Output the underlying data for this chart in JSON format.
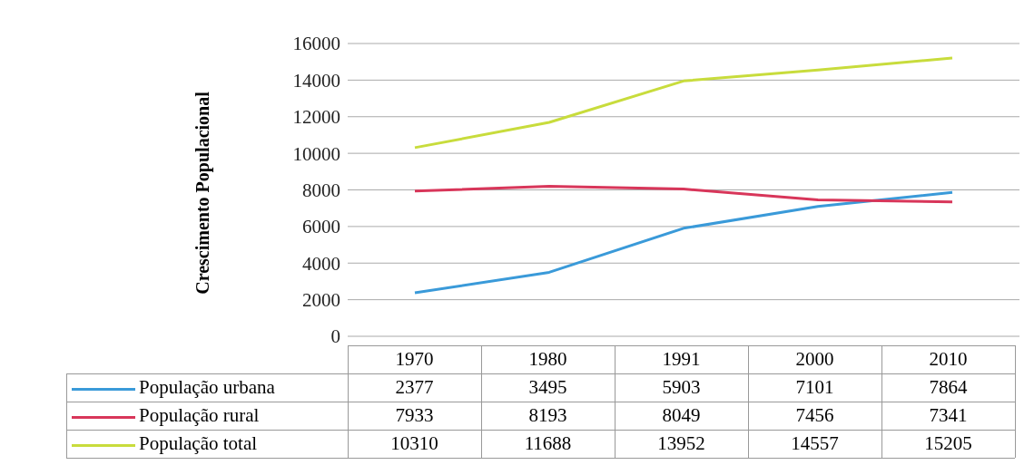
{
  "chart_data": {
    "type": "line",
    "ylabel": "Crescimento Populacional",
    "categories": [
      "1970",
      "1980",
      "1991",
      "2000",
      "2010"
    ],
    "series": [
      {
        "name": "População urbana",
        "color": "#3a9ad9",
        "values": [
          2377,
          3495,
          5903,
          7101,
          7864
        ]
      },
      {
        "name": "População rural",
        "color": "#d8365a",
        "values": [
          7933,
          8193,
          8049,
          7456,
          7341
        ]
      },
      {
        "name": "População total",
        "color": "#c8dc3c",
        "values": [
          10310,
          11688,
          13952,
          14557,
          15205
        ]
      }
    ],
    "ylim": [
      0,
      16000
    ],
    "yticks": [
      0,
      2000,
      4000,
      6000,
      8000,
      10000,
      12000,
      14000,
      16000
    ],
    "grid": "y",
    "legend": "bottom",
    "data_labels": true,
    "marker": "none",
    "line_style": "solid"
  }
}
